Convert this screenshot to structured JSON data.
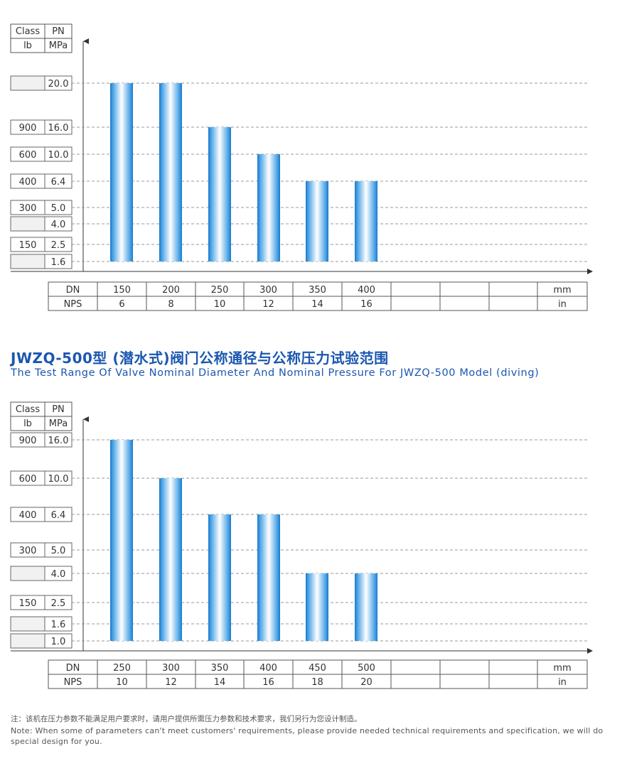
{
  "colors": {
    "bar_dark": "#1a78c9",
    "bar_light": "#ffffff",
    "title": "#1b57b0",
    "grid": "#999999"
  },
  "notes": {
    "cn": "注：该机在压力参数不能满足用户要求时，请用户提供所需压力参数和技术要求，我们另行为您设计制造。",
    "en": "Note: When some of parameters can't meet customers' requirements, please provide needed technical requirements and specification, we will do special design for you."
  },
  "chart_data": [
    {
      "type": "bar",
      "title": "",
      "subtitle": "",
      "header": {
        "col1": [
          "Class",
          "lb"
        ],
        "col2": [
          "PN",
          "MPa"
        ]
      },
      "levels": [
        {
          "pn": "20.0",
          "class": ""
        },
        {
          "pn": "16.0",
          "class": "900"
        },
        {
          "pn": "10.0",
          "class": "600"
        },
        {
          "pn": "6.4",
          "class": "400"
        },
        {
          "pn": "5.0",
          "class": "300"
        },
        {
          "pn": "4.0",
          "class": ""
        },
        {
          "pn": "2.5",
          "class": "150"
        },
        {
          "pn": "1.6",
          "class": ""
        }
      ],
      "baseline_pn": "1.6",
      "dn_label": "DN",
      "nps_label": "NPS",
      "dn_unit": "mm",
      "nps_unit": "in",
      "categories": [
        "150",
        "200",
        "250",
        "300",
        "350",
        "400"
      ],
      "nps": [
        "6",
        "8",
        "10",
        "12",
        "14",
        "16"
      ],
      "values": [
        "20.0",
        "20.0",
        "16.0",
        "10.0",
        "6.4",
        "6.4"
      ],
      "empty_columns": 4
    },
    {
      "type": "bar",
      "title": "JWZQ-500型 (潜水式)阀门公称通径与公称压力试验范围",
      "subtitle": "The Test Range Of Valve Nominal Diameter And Nominal Pressure For JWZQ-500 Model (diving)",
      "header": {
        "col1": [
          "Class",
          "lb"
        ],
        "col2": [
          "PN",
          "MPa"
        ]
      },
      "levels": [
        {
          "pn": "16.0",
          "class": "900"
        },
        {
          "pn": "10.0",
          "class": "600"
        },
        {
          "pn": "6.4",
          "class": "400"
        },
        {
          "pn": "5.0",
          "class": "300"
        },
        {
          "pn": "4.0",
          "class": ""
        },
        {
          "pn": "2.5",
          "class": "150"
        },
        {
          "pn": "1.6",
          "class": ""
        },
        {
          "pn": "1.0",
          "class": ""
        }
      ],
      "baseline_pn": "1.0",
      "dn_label": "DN",
      "nps_label": "NPS",
      "dn_unit": "mm",
      "nps_unit": "in",
      "categories": [
        "250",
        "300",
        "350",
        "400",
        "450",
        "500"
      ],
      "nps": [
        "10",
        "12",
        "14",
        "16",
        "18",
        "20"
      ],
      "values": [
        "16.0",
        "10.0",
        "6.4",
        "6.4",
        "4.0",
        "4.0"
      ],
      "empty_columns": 4
    }
  ]
}
